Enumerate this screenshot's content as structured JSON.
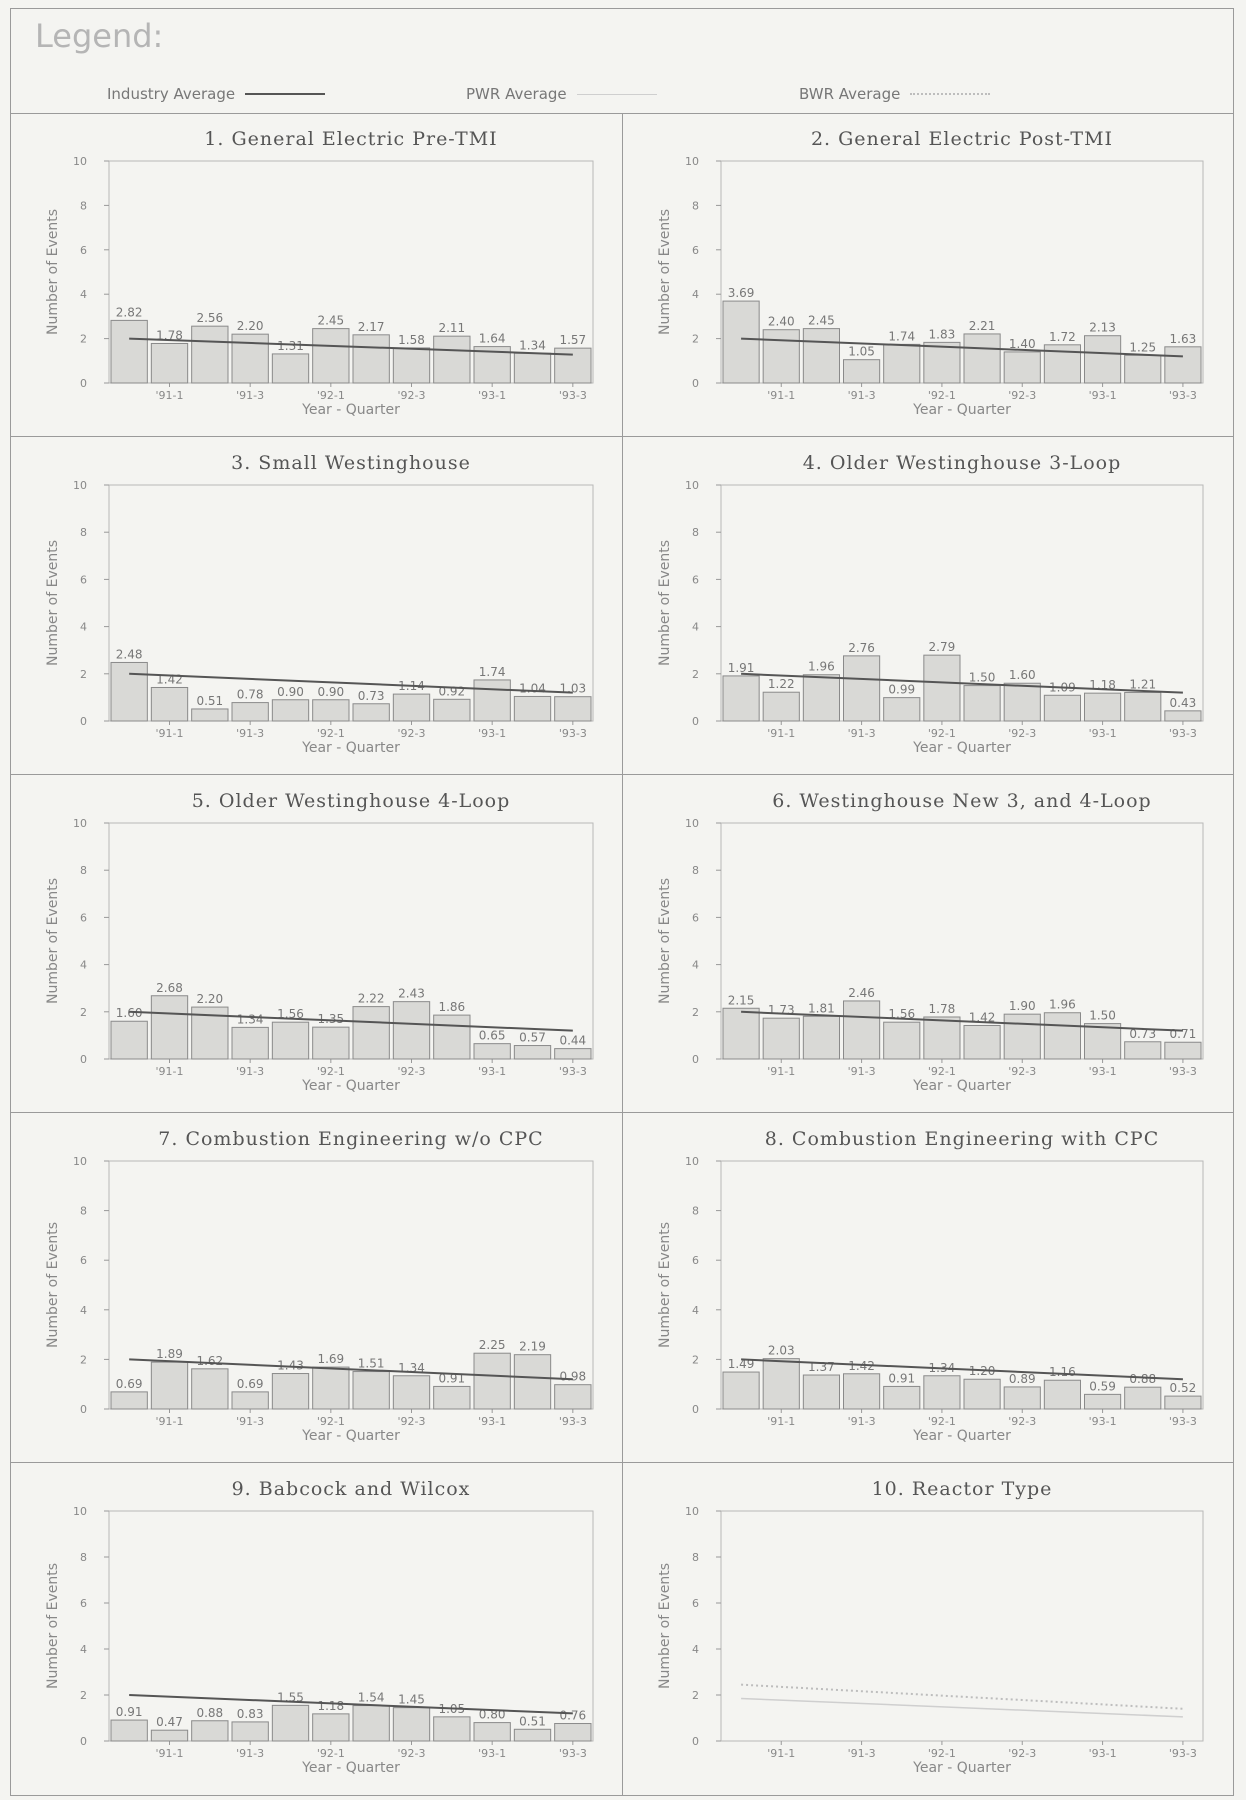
{
  "legend": {
    "title": "Legend:",
    "industry": "Industry Average",
    "pwr": "PWR Average",
    "bwr": "BWR Average"
  },
  "colors": {
    "bar_fill": "#d9d9d6",
    "bar_stroke": "#8a8a8a",
    "industry_line": "#555555",
    "pwr_line": "#cfcfcf",
    "bwr_line": "#bdbdbd"
  },
  "chart_data": [
    {
      "type": "bar",
      "title": "1. General Electric Pre-TMI",
      "xlabel": "Year - Quarter",
      "ylabel": "Number of Events",
      "ylim": [
        0,
        10
      ],
      "yticks": [
        "0",
        "2",
        "4",
        "6",
        "8",
        "10"
      ],
      "xticks": [
        "'91-1",
        "'91-3",
        "'92-1",
        "'92-3",
        "'93-1",
        "'93-3"
      ],
      "series": [
        {
          "values": [
            2.82,
            1.78,
            2.56,
            2.2,
            1.31,
            2.45,
            2.17,
            1.58,
            2.11,
            1.64,
            1.34,
            1.57
          ],
          "labels": [
            "2.82",
            "1.78",
            "2.56",
            "2.20",
            "1.31",
            "2.45",
            "2.17",
            "1.58",
            "2.11",
            "1.64",
            "1.34",
            "1.57"
          ]
        }
      ],
      "trend": [
        2.0,
        1.28
      ]
    },
    {
      "type": "bar",
      "title": "2. General Electric Post-TMI",
      "xlabel": "Year - Quarter",
      "ylabel": "Number of Events",
      "ylim": [
        0,
        10
      ],
      "yticks": [
        "0",
        "2",
        "4",
        "6",
        "8",
        "10"
      ],
      "xticks": [
        "'91-1",
        "'91-3",
        "'92-1",
        "'92-3",
        "'93-1",
        "'93-3"
      ],
      "series": [
        {
          "values": [
            3.69,
            2.4,
            2.45,
            1.05,
            1.74,
            1.83,
            2.21,
            1.4,
            1.72,
            2.13,
            1.25,
            1.63
          ],
          "labels": [
            "3.69",
            "2.40",
            "2.45",
            "1.05",
            "1.74",
            "1.83",
            "2.21",
            "1.40",
            "1.72",
            "2.13",
            "1.25",
            "1.63"
          ]
        }
      ],
      "trend": [
        2.0,
        1.2
      ]
    },
    {
      "type": "bar",
      "title": "3. Small Westinghouse",
      "xlabel": "Year - Quarter",
      "ylabel": "Number of Events",
      "ylim": [
        0,
        10
      ],
      "yticks": [
        "0",
        "2",
        "4",
        "6",
        "8",
        "10"
      ],
      "xticks": [
        "'91-1",
        "'91-3",
        "'92-1",
        "'92-3",
        "'93-1",
        "'93-3"
      ],
      "series": [
        {
          "values": [
            2.48,
            1.42,
            0.51,
            0.78,
            0.9,
            0.9,
            0.73,
            1.14,
            0.92,
            1.74,
            1.04,
            1.03
          ],
          "labels": [
            "2.48",
            "1.42",
            "0.51",
            "0.78",
            "0.90",
            "0.90",
            "0.73",
            "1.14",
            "0.92",
            "1.74",
            "1.04",
            "1.03"
          ]
        }
      ],
      "trend": [
        2.0,
        1.2
      ]
    },
    {
      "type": "bar",
      "title": "4. Older Westinghouse 3-Loop",
      "xlabel": "Year - Quarter",
      "ylabel": "Number of Events",
      "ylim": [
        0,
        10
      ],
      "yticks": [
        "0",
        "2",
        "4",
        "6",
        "8",
        "10"
      ],
      "xticks": [
        "'91-1",
        "'91-3",
        "'92-1",
        "'92-3",
        "'93-1",
        "'93-3"
      ],
      "series": [
        {
          "values": [
            1.91,
            1.22,
            1.96,
            2.76,
            0.99,
            2.79,
            1.5,
            1.6,
            1.09,
            1.18,
            1.21,
            0.43
          ],
          "labels": [
            "1.91",
            "1.22",
            "1.96",
            "2.76",
            "0.99",
            "2.79",
            "1.50",
            "1.60",
            "1.09",
            "1.18",
            "1.21",
            "0.43"
          ]
        }
      ],
      "trend": [
        2.0,
        1.2
      ]
    },
    {
      "type": "bar",
      "title": "5. Older Westinghouse 4-Loop",
      "xlabel": "Year - Quarter",
      "ylabel": "Number of Events",
      "ylim": [
        0,
        10
      ],
      "yticks": [
        "0",
        "2",
        "4",
        "6",
        "8",
        "10"
      ],
      "xticks": [
        "'91-1",
        "'91-3",
        "'92-1",
        "'92-3",
        "'93-1",
        "'93-3"
      ],
      "series": [
        {
          "values": [
            1.6,
            2.68,
            2.2,
            1.34,
            1.56,
            1.35,
            2.22,
            2.43,
            1.86,
            0.65,
            0.57,
            0.44
          ],
          "labels": [
            "1.60",
            "2.68",
            "2.20",
            "1.34",
            "1.56",
            "1.35",
            "2.22",
            "2.43",
            "1.86",
            "0.65",
            "0.57",
            "0.44"
          ]
        }
      ],
      "trend": [
        2.0,
        1.2
      ]
    },
    {
      "type": "bar",
      "title": "6. Westinghouse New 3, and 4-Loop",
      "xlabel": "Year - Quarter",
      "ylabel": "Number of Events",
      "ylim": [
        0,
        10
      ],
      "yticks": [
        "0",
        "2",
        "4",
        "6",
        "8",
        "10"
      ],
      "xticks": [
        "'91-1",
        "'91-3",
        "'92-1",
        "'92-3",
        "'93-1",
        "'93-3"
      ],
      "series": [
        {
          "values": [
            2.15,
            1.73,
            1.81,
            2.46,
            1.56,
            1.78,
            1.42,
            1.9,
            1.96,
            1.5,
            0.73,
            0.71
          ],
          "labels": [
            "2.15",
            "1.73",
            "1.81",
            "2.46",
            "1.56",
            "1.78",
            "1.42",
            "1.90",
            "1.96",
            "1.50",
            "0.73",
            "0.71"
          ]
        }
      ],
      "trend": [
        2.0,
        1.2
      ]
    },
    {
      "type": "bar",
      "title": "7. Combustion Engineering w/o CPC",
      "xlabel": "Year - Quarter",
      "ylabel": "Number of Events",
      "ylim": [
        0,
        10
      ],
      "yticks": [
        "0",
        "2",
        "4",
        "6",
        "8",
        "10"
      ],
      "xticks": [
        "'91-1",
        "'91-3",
        "'92-1",
        "'92-3",
        "'93-1",
        "'93-3"
      ],
      "series": [
        {
          "values": [
            0.69,
            1.89,
            1.62,
            0.69,
            1.43,
            1.69,
            1.51,
            1.34,
            0.91,
            2.25,
            2.19,
            0.98
          ],
          "labels": [
            "0.69",
            "1.89",
            "1.62",
            "0.69",
            "1.43",
            "1.69",
            "1.51",
            "1.34",
            "0.91",
            "2.25",
            "2.19",
            "0.98"
          ]
        }
      ],
      "trend": [
        2.0,
        1.2
      ]
    },
    {
      "type": "bar",
      "title": "8. Combustion Engineering with CPC",
      "xlabel": "Year - Quarter",
      "ylabel": "Number of Events",
      "ylim": [
        0,
        10
      ],
      "yticks": [
        "0",
        "2",
        "4",
        "6",
        "8",
        "10"
      ],
      "xticks": [
        "'91-1",
        "'91-3",
        "'92-1",
        "'92-3",
        "'93-1",
        "'93-3"
      ],
      "series": [
        {
          "values": [
            1.49,
            2.03,
            1.37,
            1.42,
            0.91,
            1.34,
            1.2,
            0.89,
            1.16,
            0.59,
            0.88,
            0.52
          ],
          "labels": [
            "1.49",
            "2.03",
            "1.37",
            "1.42",
            "0.91",
            "1.34",
            "1.20",
            "0.89",
            "1.16",
            "0.59",
            "0.88",
            "0.52"
          ]
        }
      ],
      "trend": [
        2.0,
        1.2
      ]
    },
    {
      "type": "bar",
      "title": "9. Babcock and Wilcox",
      "xlabel": "Year - Quarter",
      "ylabel": "Number of Events",
      "ylim": [
        0,
        10
      ],
      "yticks": [
        "0",
        "2",
        "4",
        "6",
        "8",
        "10"
      ],
      "xticks": [
        "'91-1",
        "'91-3",
        "'92-1",
        "'92-3",
        "'93-1",
        "'93-3"
      ],
      "series": [
        {
          "values": [
            0.91,
            0.47,
            0.88,
            0.83,
            1.55,
            1.18,
            1.54,
            1.45,
            1.05,
            0.8,
            0.51,
            0.76
          ],
          "labels": [
            "0.91",
            "0.47",
            "0.88",
            "0.83",
            "1.55",
            "1.18",
            "1.54",
            "1.45",
            "1.05",
            "0.80",
            "0.51",
            "0.76"
          ]
        }
      ],
      "trend": [
        2.0,
        1.2
      ]
    },
    {
      "type": "line",
      "title": "10. Reactor Type",
      "xlabel": "Year - Quarter",
      "ylabel": "Number of Events",
      "ylim": [
        0,
        10
      ],
      "yticks": [
        "0",
        "2",
        "4",
        "6",
        "8",
        "10"
      ],
      "xticks": [
        "'91-1",
        "'91-3",
        "'92-1",
        "'92-3",
        "'93-1",
        "'93-3"
      ],
      "series": [],
      "bwr_trend": [
        2.45,
        1.4
      ],
      "pwr_trend": [
        1.85,
        1.05
      ]
    }
  ]
}
